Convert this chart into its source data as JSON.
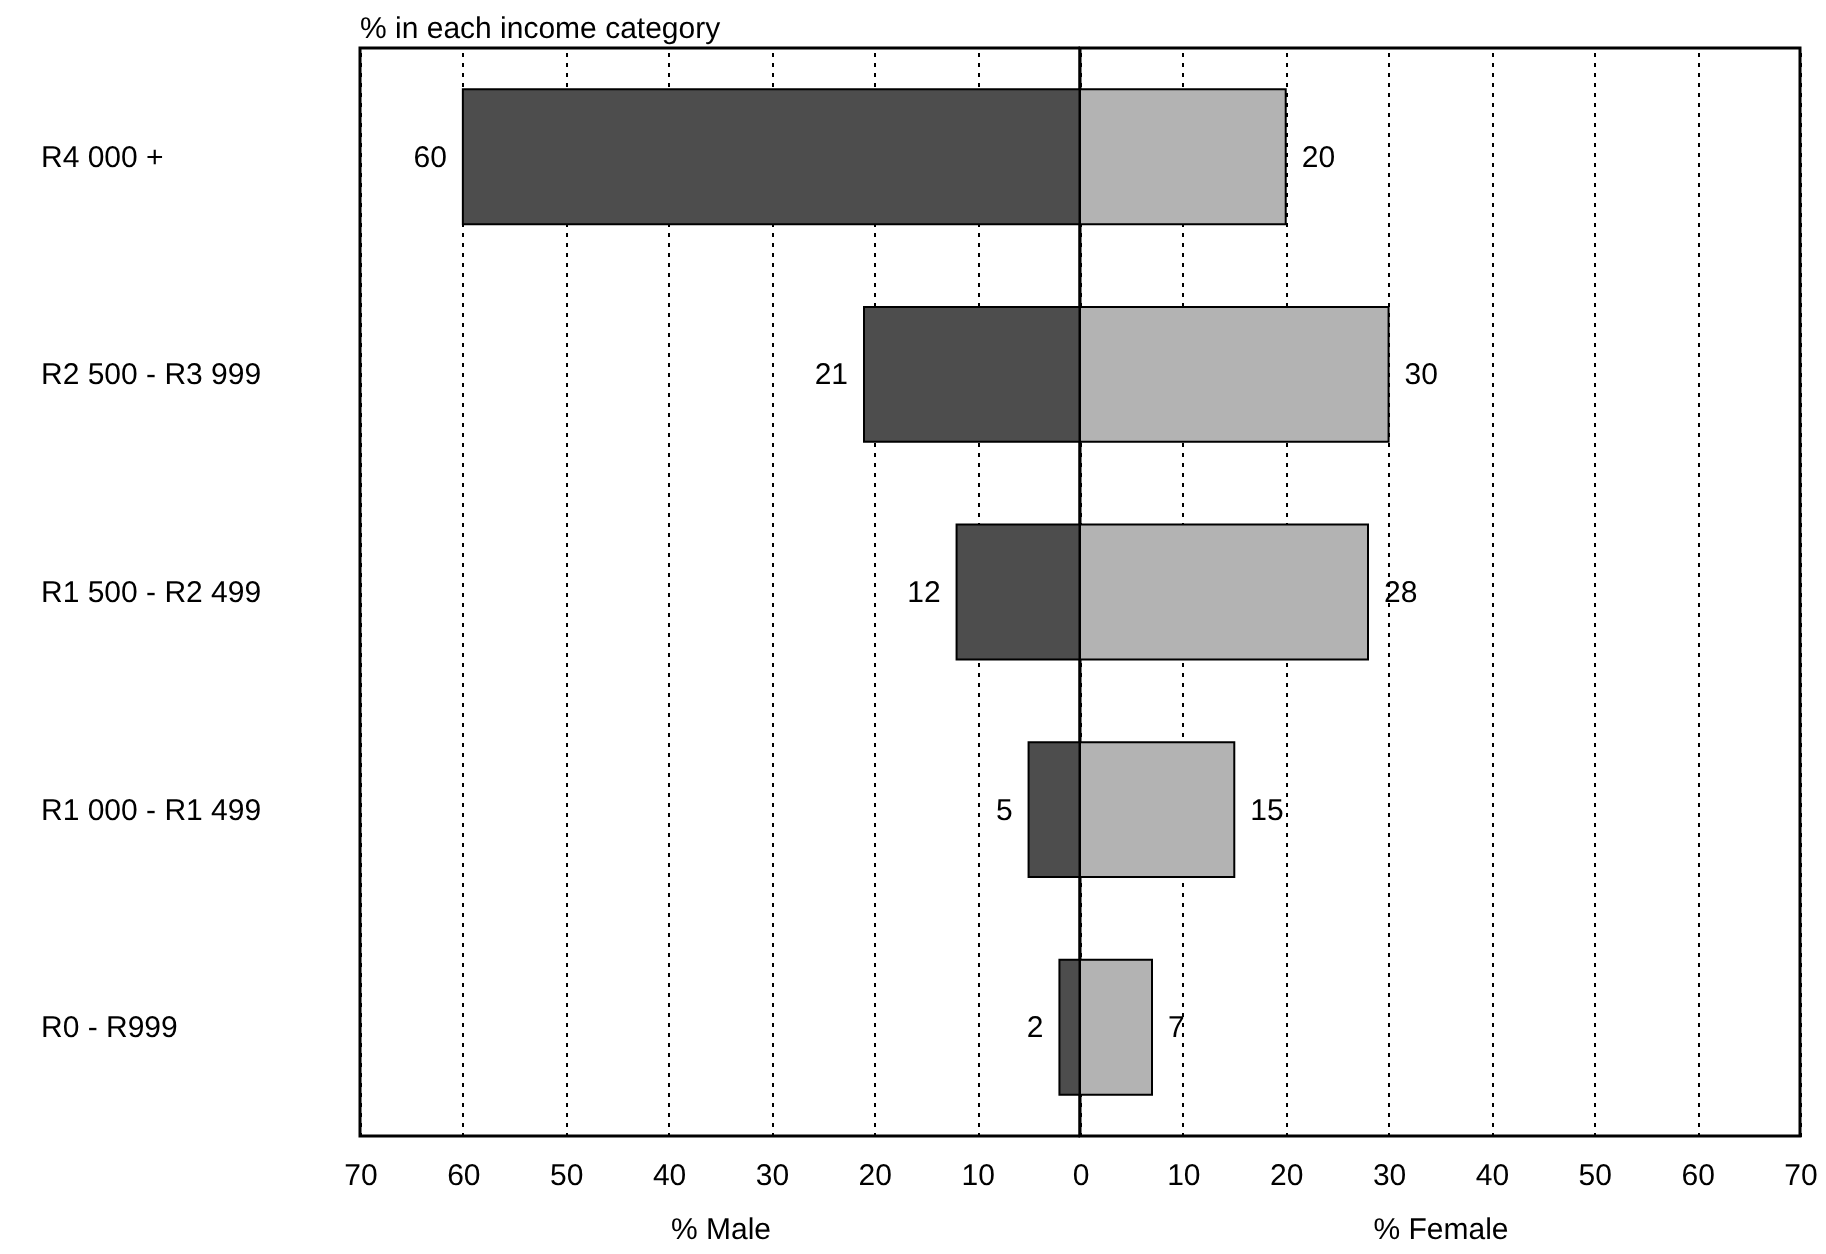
{
  "chart_data": [
    {
      "type": "bar",
      "orientation": "horizontal",
      "title": "% in each income category",
      "xlabel": "% Male",
      "categories": [
        "R4 000 +",
        "R2 500 - R3 999",
        "R1 500 - R2 499",
        "R1 000 - R1 499",
        "R0 - R999"
      ],
      "series": [
        {
          "color": "#4d4d4d",
          "values": [
            60,
            21,
            12,
            5,
            2
          ]
        }
      ],
      "xlim": [
        70,
        0
      ],
      "xticks": [
        70,
        60,
        50,
        40,
        30,
        20,
        10,
        {
          "value": 0,
          "label": null
        }
      ],
      "grid": "x",
      "data_labels": true
    },
    {
      "type": "bar",
      "orientation": "horizontal",
      "xlabel": "% Female",
      "series": [
        {
          "color": "#b3b3b3",
          "values": [
            20,
            30,
            28,
            15,
            7
          ]
        }
      ],
      "xlim": [
        0,
        70
      ],
      "xticks": [
        0,
        10,
        20,
        30,
        40,
        50,
        60,
        70
      ],
      "grid": "x",
      "data_labels": true,
      "tick_labels": "x"
    }
  ]
}
